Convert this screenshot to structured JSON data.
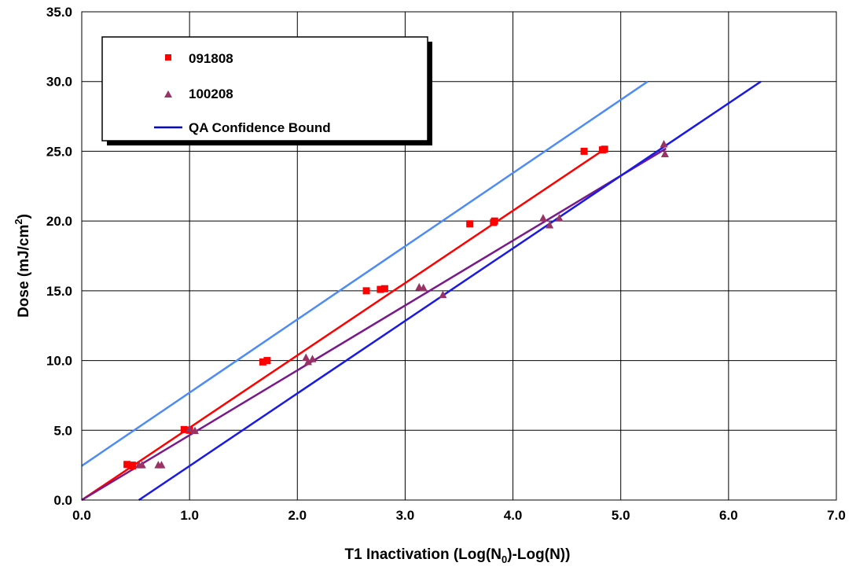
{
  "chart_data": {
    "type": "scatter",
    "xlabel_main": "T1 Inactivation (Log(N",
    "xlabel_sub": "0",
    "xlabel_tail": ")-Log(N))",
    "ylabel_main": "Dose (mJ/cm",
    "ylabel_sup": "2",
    "ylabel_tail": ")",
    "xlim": [
      0,
      7
    ],
    "ylim": [
      0,
      35
    ],
    "x_ticks": [
      "0.0",
      "1.0",
      "2.0",
      "3.0",
      "4.0",
      "5.0",
      "6.0",
      "7.0"
    ],
    "y_ticks": [
      "0.0",
      "5.0",
      "10.0",
      "15.0",
      "20.0",
      "25.0",
      "30.0",
      "35.0"
    ],
    "grid": true,
    "legend_position": "top-left",
    "series": [
      {
        "name": "091808",
        "marker": "square",
        "color": "#ff0000",
        "points": [
          [
            0.42,
            2.55
          ],
          [
            0.47,
            2.5
          ],
          [
            0.47,
            2.45
          ],
          [
            0.95,
            5.05
          ],
          [
            1.0,
            5.0
          ],
          [
            1.68,
            9.9
          ],
          [
            1.72,
            10.0
          ],
          [
            2.64,
            15.0
          ],
          [
            2.77,
            15.1
          ],
          [
            2.81,
            15.15
          ],
          [
            3.6,
            19.8
          ],
          [
            3.82,
            19.9
          ],
          [
            3.83,
            20.0
          ],
          [
            4.66,
            25.0
          ],
          [
            4.83,
            25.1
          ],
          [
            4.85,
            25.15
          ]
        ],
        "fit": [
          [
            0.0,
            0.0
          ],
          [
            4.85,
            25.15
          ]
        ],
        "fit_color": "#ff0000"
      },
      {
        "name": "100208",
        "marker": "triangle",
        "color": "#993366",
        "points": [
          [
            0.53,
            2.5
          ],
          [
            0.56,
            2.5
          ],
          [
            0.71,
            2.5
          ],
          [
            0.74,
            2.5
          ],
          [
            1.0,
            5.1
          ],
          [
            1.05,
            4.95
          ],
          [
            2.08,
            10.2
          ],
          [
            2.1,
            9.9
          ],
          [
            2.14,
            10.1
          ],
          [
            3.13,
            15.25
          ],
          [
            3.17,
            15.2
          ],
          [
            3.35,
            14.7
          ],
          [
            4.28,
            20.2
          ],
          [
            4.34,
            19.7
          ],
          [
            4.43,
            20.2
          ],
          [
            5.4,
            25.5
          ],
          [
            5.41,
            24.8
          ]
        ],
        "fit": [
          [
            0.0,
            0.0
          ],
          [
            5.42,
            25.2
          ]
        ],
        "fit_color": "#7a1a8a"
      },
      {
        "name": "QA Confidence Bound",
        "marker": "line",
        "color": "#0000cc",
        "lines": [
          {
            "points": [
              [
                0.53,
                0.0
              ],
              [
                6.3,
                30.0
              ]
            ],
            "color": "#1a1ae6"
          },
          {
            "points": [
              [
                0.0,
                2.45
              ],
              [
                5.25,
                30.0
              ]
            ],
            "color": "#4d8cf5"
          }
        ]
      }
    ]
  }
}
